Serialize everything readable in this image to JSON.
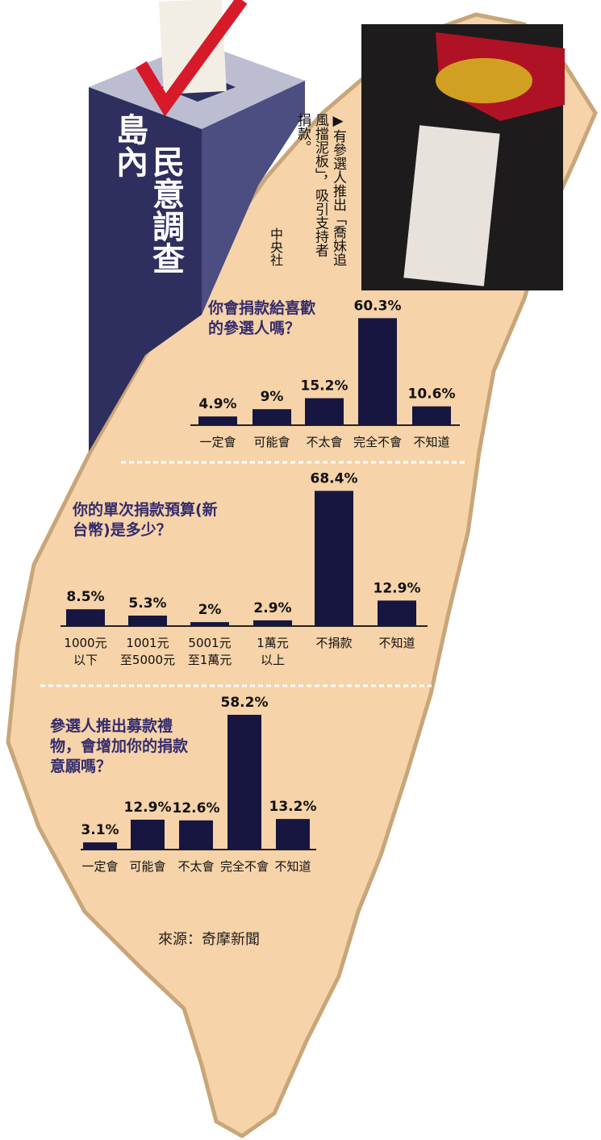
{
  "header": {
    "title_1": "島內",
    "title_2": "民意調查"
  },
  "photo_caption": {
    "text": "▶有參選人推出「喬妹追風擋泥板」，吸引支持者捐款。",
    "credit": "中央社"
  },
  "chart_data": [
    {
      "type": "bar",
      "title": "你會捐款給喜歡的參選人嗎？",
      "color": "#161640",
      "categories": [
        "一定會",
        "可能會",
        "不太會",
        "完全不會",
        "不知道"
      ],
      "values": [
        4.9,
        9,
        15.2,
        60.3,
        10.6
      ],
      "value_labels": [
        "4.9%",
        "9%",
        "15.2%",
        "60.3%",
        "10.6%"
      ]
    },
    {
      "type": "bar",
      "title": "你的單次捐款預算(新台幣)是多少？",
      "color": "#161640",
      "categories": [
        [
          "1000元",
          "以下"
        ],
        [
          "1001元",
          "至5000元"
        ],
        [
          "5001元",
          "至1萬元"
        ],
        [
          "1萬元",
          "以上"
        ],
        [
          "不捐款"
        ],
        [
          "不知道"
        ]
      ],
      "values": [
        8.5,
        5.3,
        2,
        2.9,
        68.4,
        12.9
      ],
      "value_labels": [
        "8.5%",
        "5.3%",
        "2%",
        "2.9%",
        "68.4%",
        "12.9%"
      ]
    },
    {
      "type": "bar",
      "title": "參選人推出募款禮物，會增加你的捐款意願嗎？",
      "color": "#161640",
      "categories": [
        "一定會",
        "可能會",
        "不太會",
        "完全不會",
        "不知道"
      ],
      "values": [
        3.1,
        12.9,
        12.6,
        58.2,
        13.2
      ],
      "value_labels": [
        "3.1%",
        "12.9%",
        "12.6%",
        "58.2%",
        "13.2%"
      ]
    }
  ],
  "source": "來源：奇摩新聞"
}
